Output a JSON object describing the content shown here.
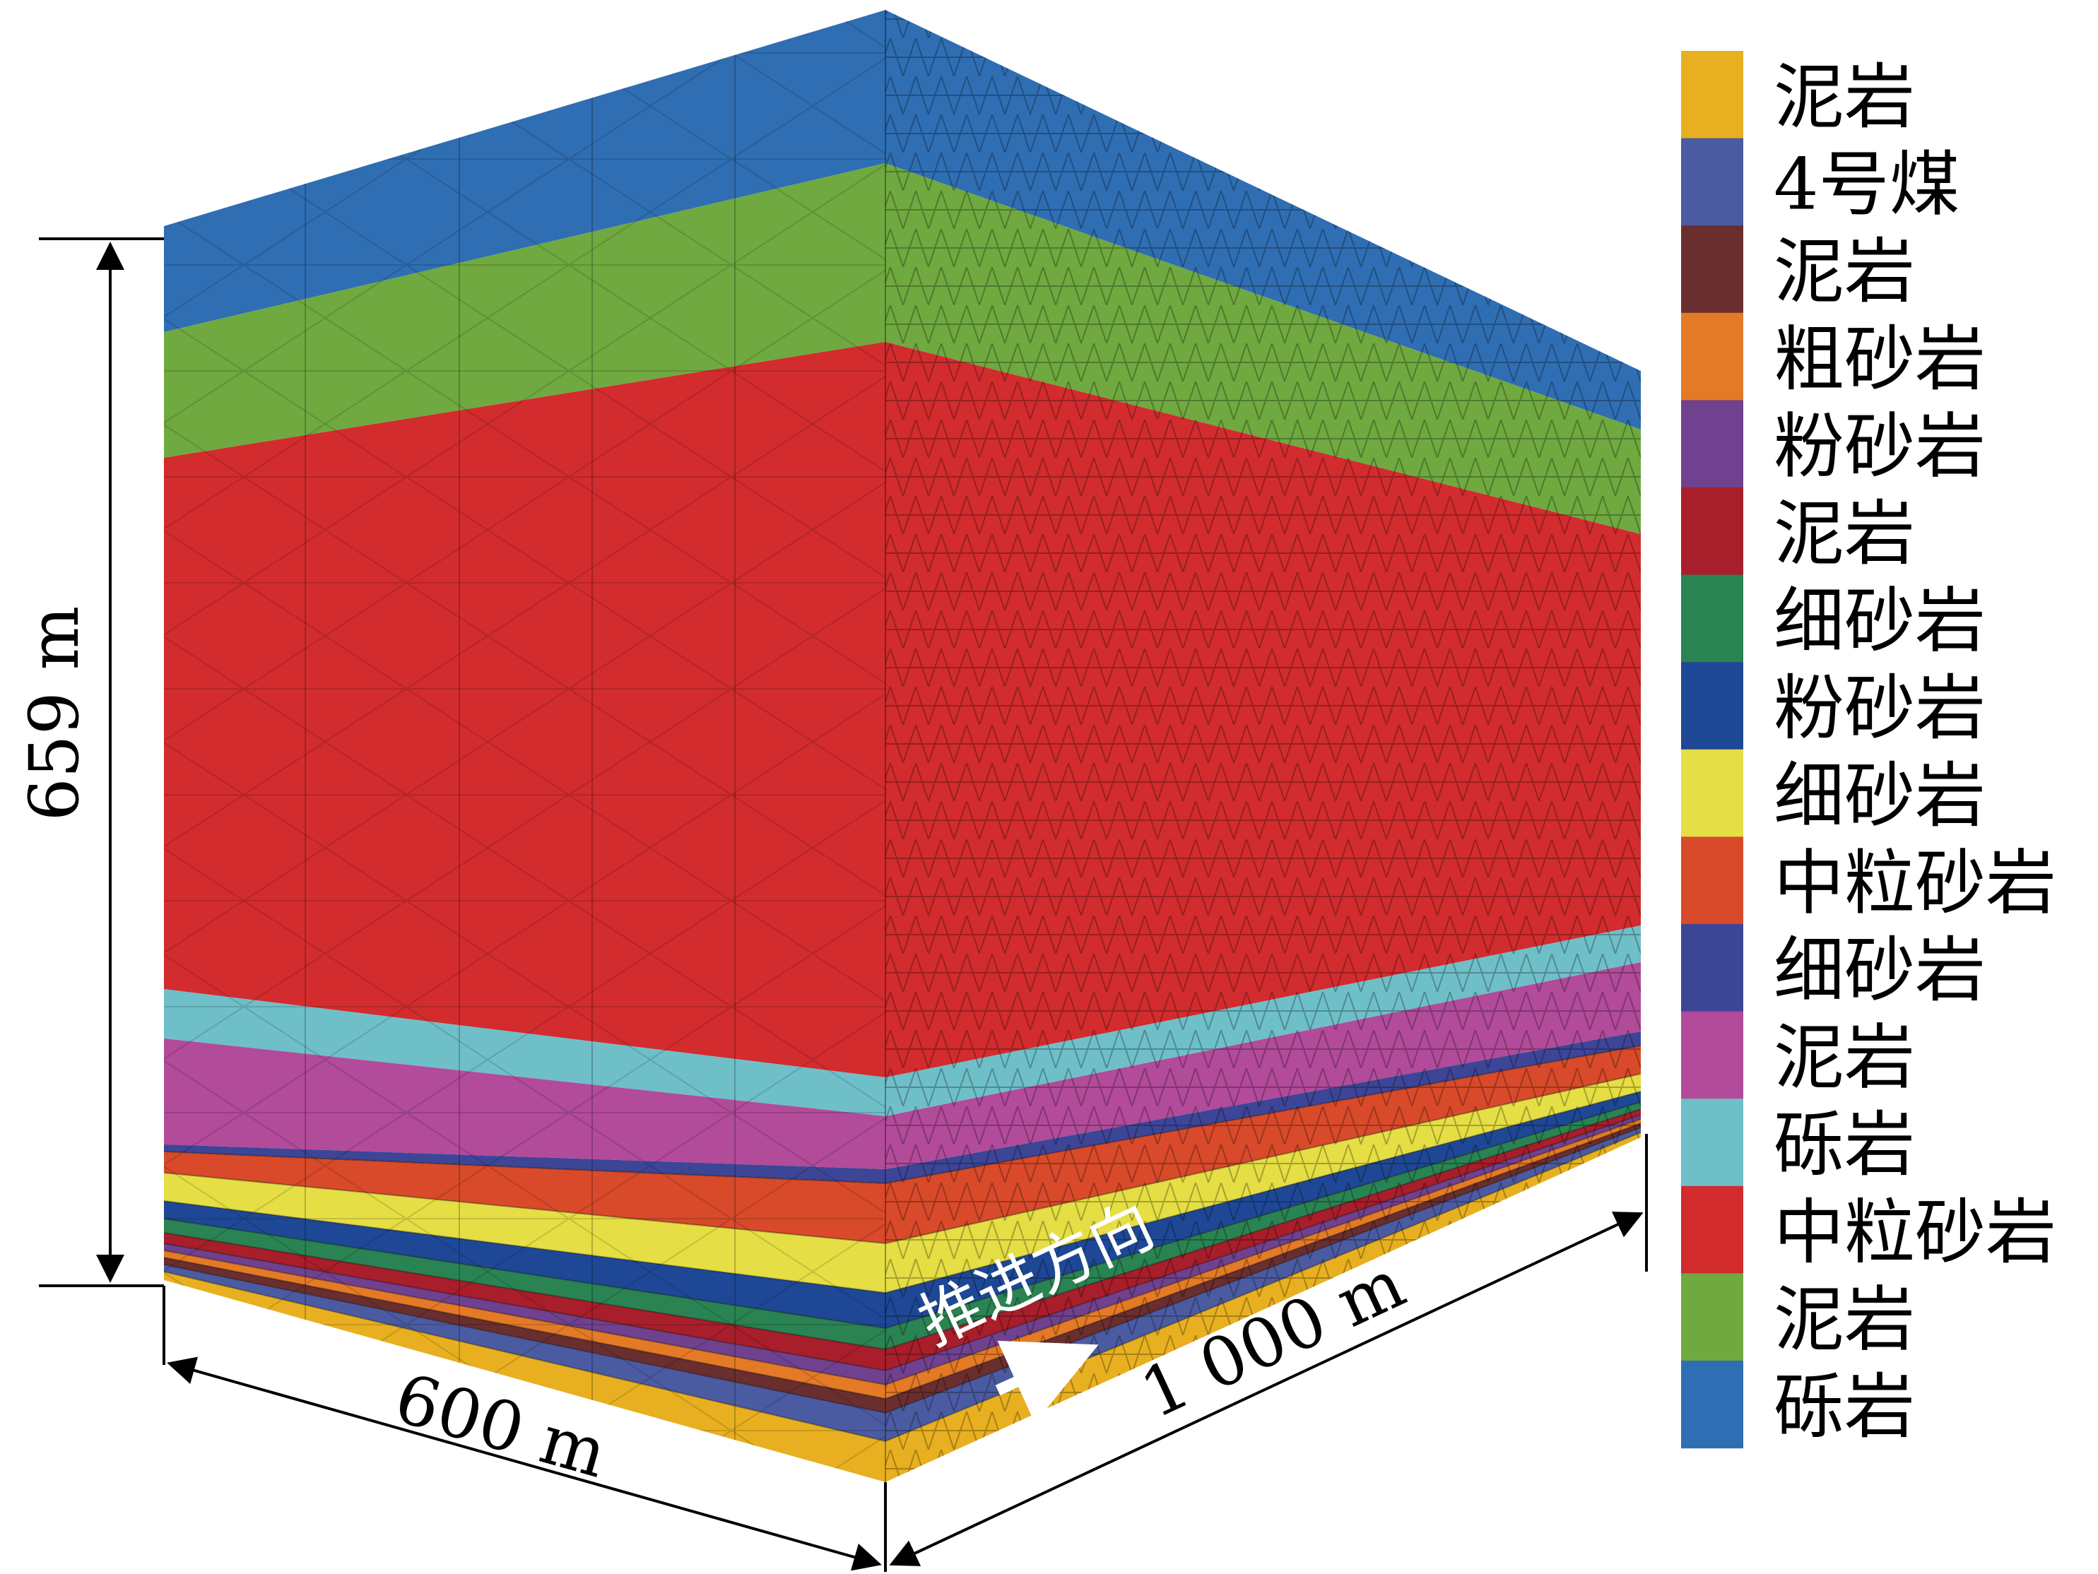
{
  "dimensions": {
    "height": "659 m",
    "width": "600 m",
    "length": "1 000 m"
  },
  "advance_direction": "推进方向",
  "strata": [
    {
      "name": "泥岩",
      "color": "#E8B020"
    },
    {
      "name": "4号煤",
      "color": "#4B5BA2"
    },
    {
      "name": "泥岩",
      "color": "#6A2E2E"
    },
    {
      "name": "粗砂岩",
      "color": "#E47A26"
    },
    {
      "name": "粉砂岩",
      "color": "#70418E"
    },
    {
      "name": "泥岩",
      "color": "#A81E2A"
    },
    {
      "name": "细砂岩",
      "color": "#2A8352"
    },
    {
      "name": "粉砂岩",
      "color": "#1E4896"
    },
    {
      "name": "细砂岩",
      "color": "#E5DE44"
    },
    {
      "name": "中粒砂岩",
      "color": "#D84A2A"
    },
    {
      "name": "细砂岩",
      "color": "#3D4597"
    },
    {
      "name": "泥岩",
      "color": "#B14B9A"
    },
    {
      "name": "砾岩",
      "color": "#6FBFC9"
    },
    {
      "name": "中粒砂岩",
      "color": "#D22C2E"
    },
    {
      "name": "泥岩",
      "color": "#6FA940"
    },
    {
      "name": "砾岩",
      "color": "#2F6EB3"
    }
  ]
}
